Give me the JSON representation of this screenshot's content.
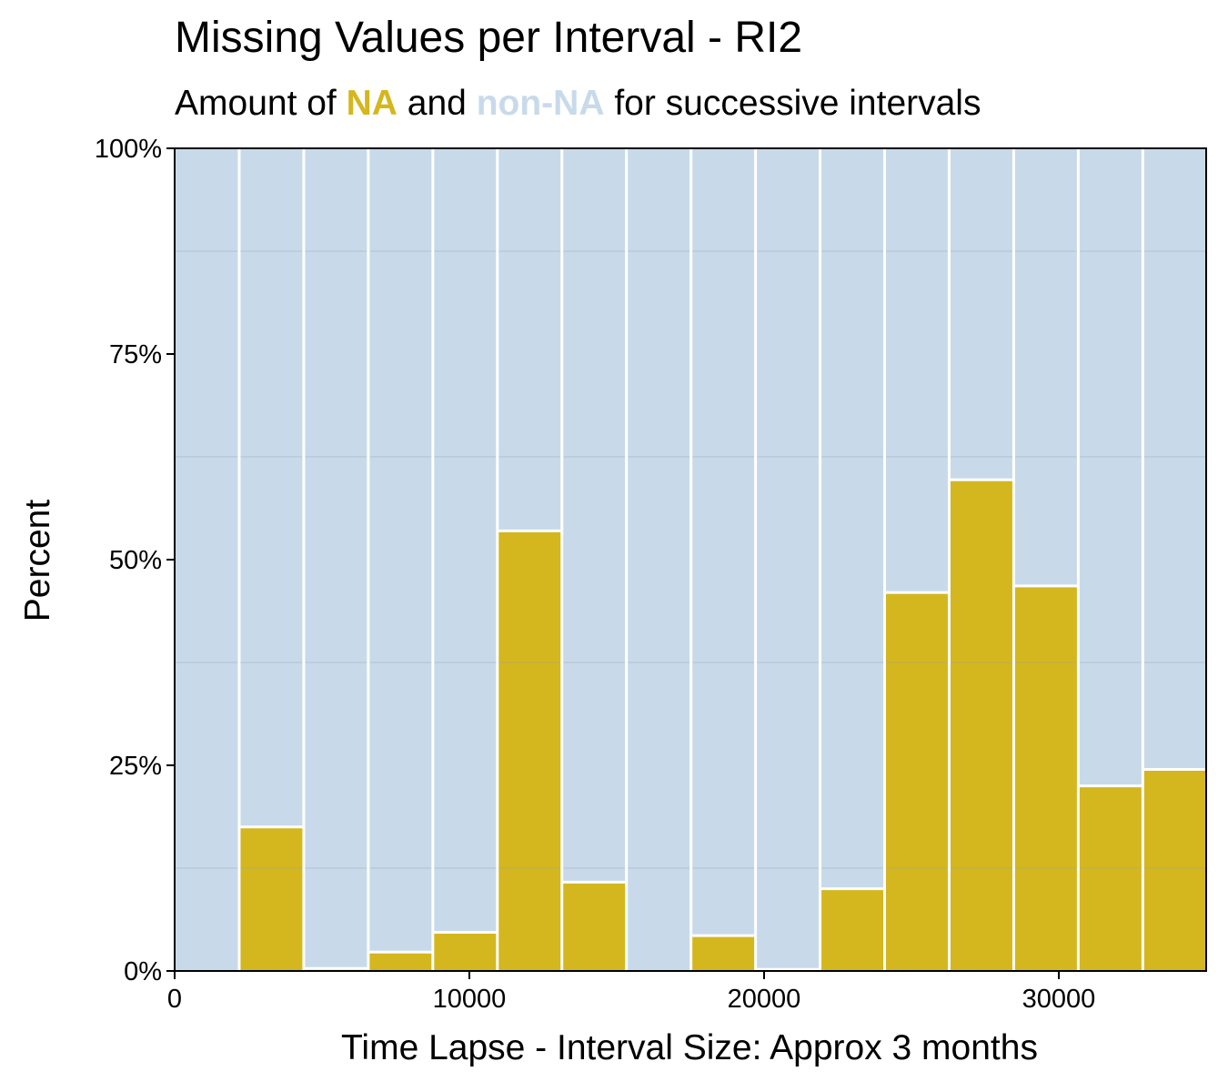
{
  "chart_data": {
    "type": "bar",
    "title": "Missing Values per Interval - RI2",
    "subtitle": {
      "prefix": "Amount of ",
      "na_label": "NA",
      "middle": " and ",
      "non_na_label": "non-NA",
      "suffix": " for successive intervals"
    },
    "xlabel": "Time Lapse - Interval Size: Approx 3 months",
    "ylabel": "Percent",
    "x_ticks": [
      0,
      10000,
      20000,
      30000
    ],
    "y_ticks": [
      0,
      25,
      50,
      75,
      100
    ],
    "y_tick_labels": [
      "0%",
      "25%",
      "50%",
      "75%",
      "100%"
    ],
    "xlim": [
      0,
      35000
    ],
    "ylim": [
      0,
      100
    ],
    "stacked": true,
    "grid": true,
    "series": [
      {
        "name": "NA",
        "x_start": [
          0,
          2190,
          4380,
          6570,
          8760,
          10950,
          13140,
          15330,
          17520,
          19710,
          21900,
          24090,
          26280,
          28470,
          30660,
          32850
        ],
        "x_end": [
          2190,
          4380,
          6570,
          8760,
          10950,
          13140,
          15330,
          17520,
          19710,
          21900,
          24090,
          26280,
          28470,
          30660,
          32850,
          35000
        ],
        "values": [
          0,
          17.5,
          0.3,
          2.3,
          4.7,
          53.5,
          10.8,
          0,
          4.3,
          0.2,
          10,
          46,
          59.7,
          46.8,
          22.5,
          24.5
        ]
      }
    ],
    "colors": {
      "na": "#d4b71e",
      "non_na": "#c8daea",
      "bar_edge": "#ffffff",
      "grid": "#8fa1ae"
    }
  }
}
